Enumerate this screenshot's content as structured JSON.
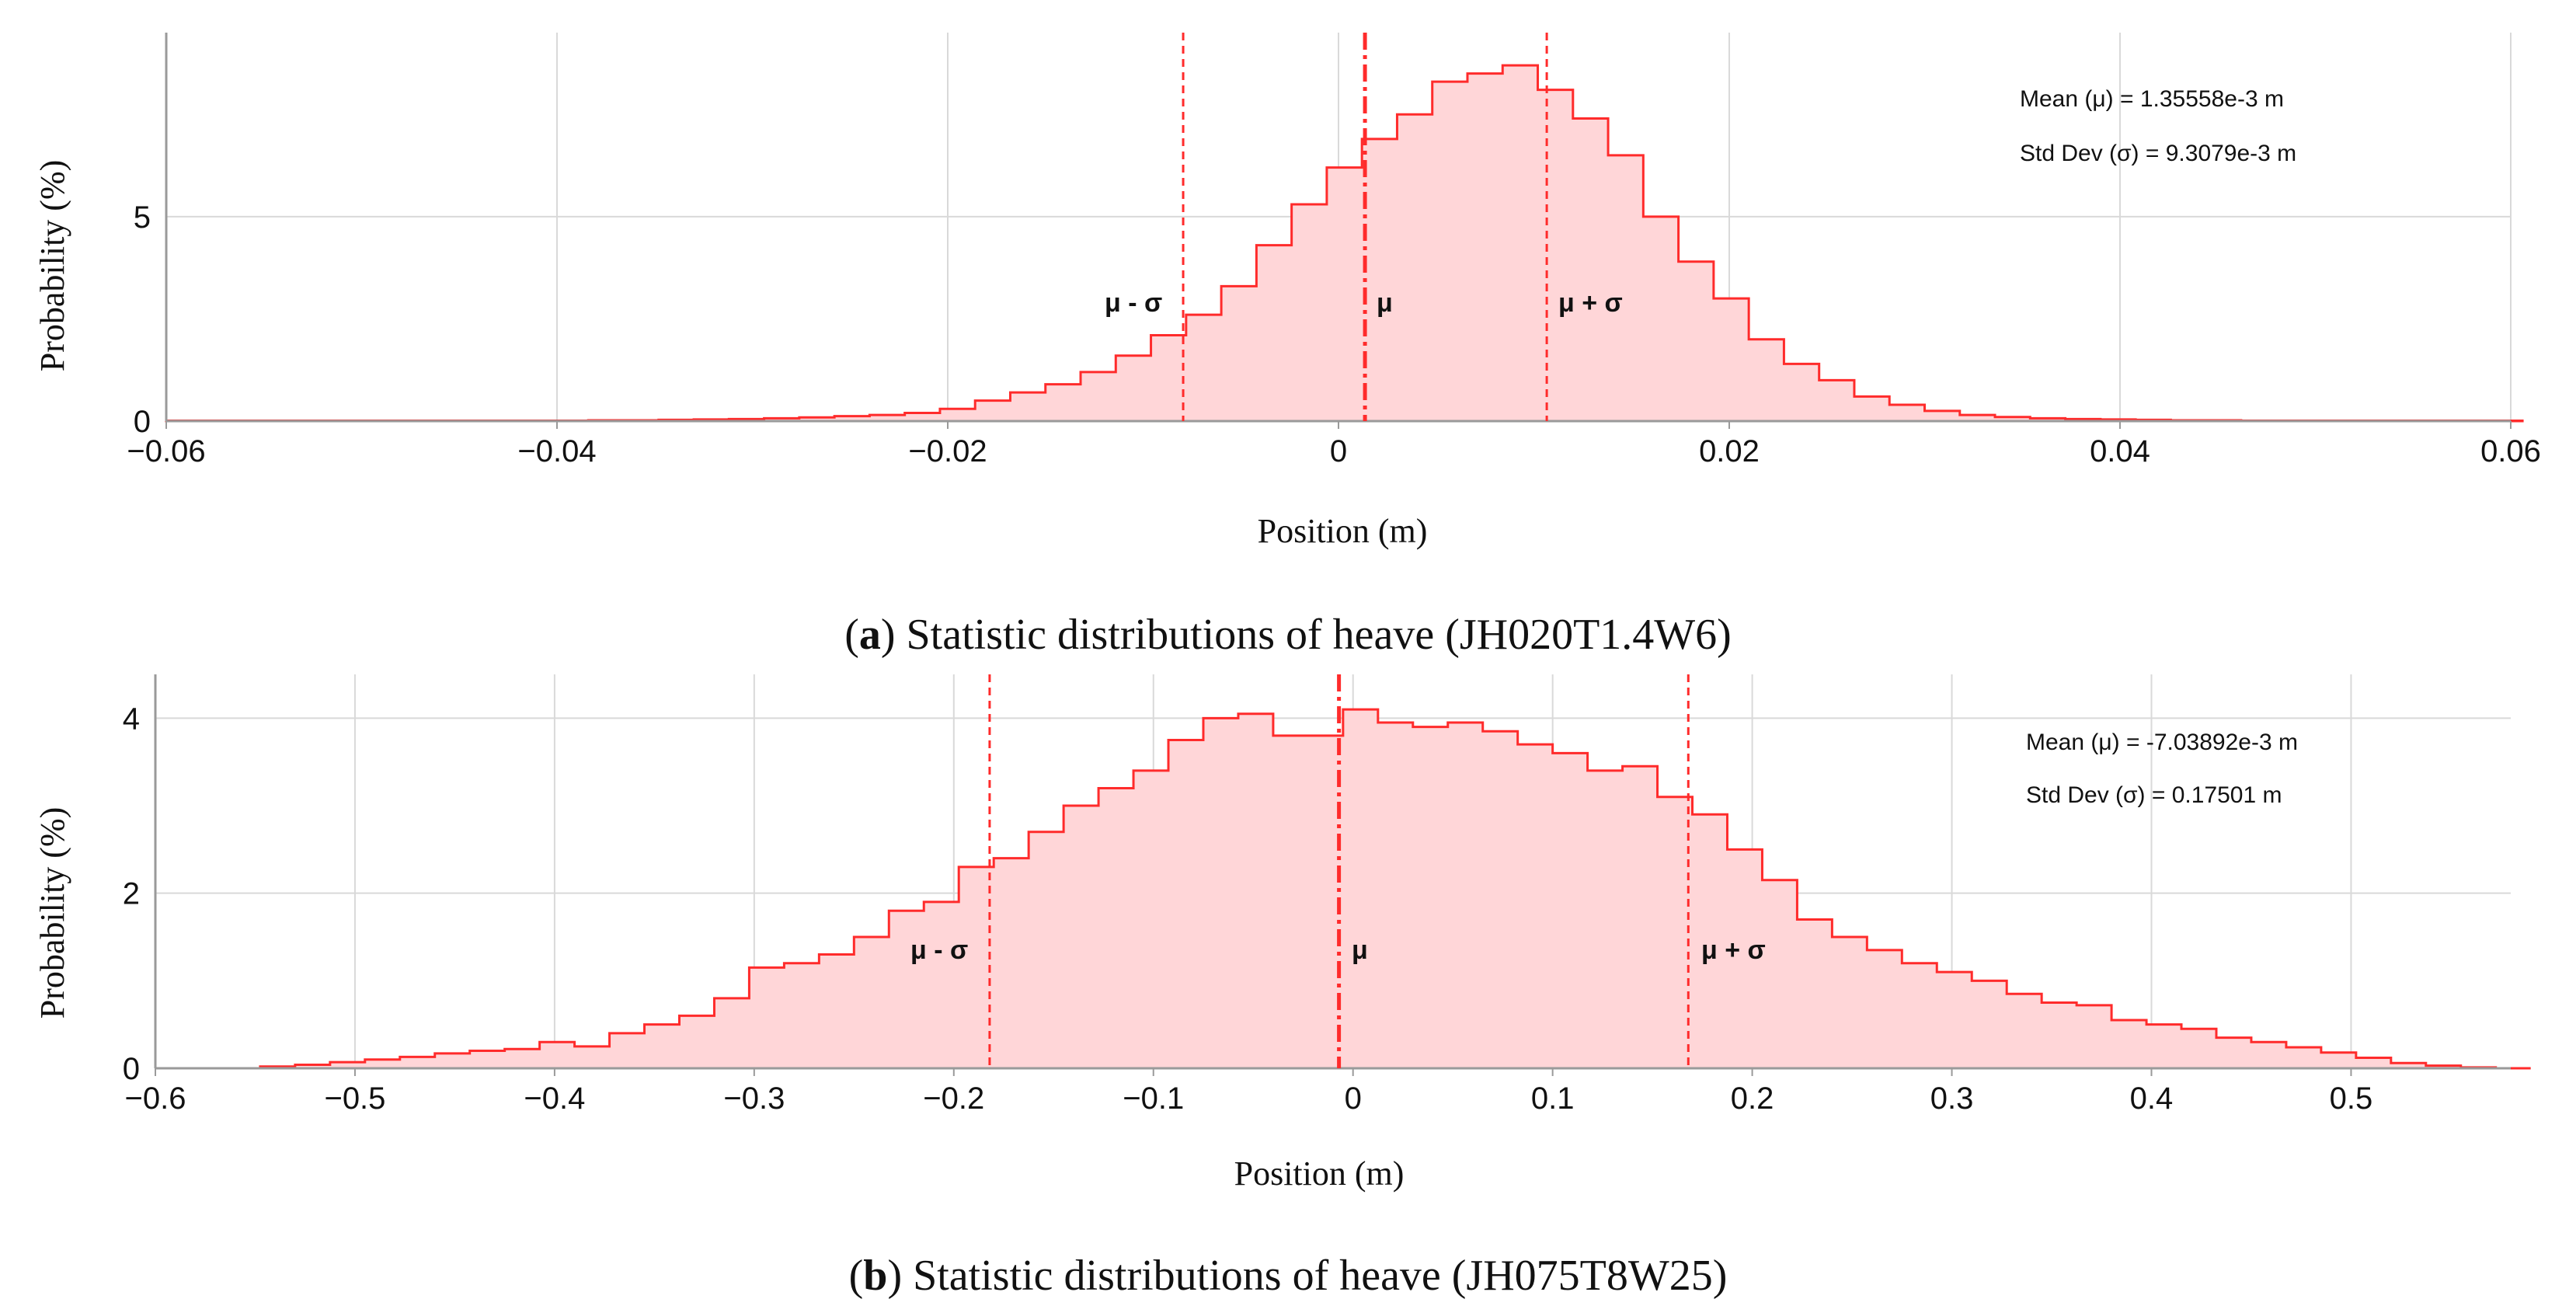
{
  "colors": {
    "fill": "#ffd6d8",
    "line": "#ff2b2b",
    "grid": "#d9d9d9",
    "axis": "#9a9a9a"
  },
  "chart_data": [
    {
      "type": "histogram",
      "caption_letter": "a",
      "caption_text": "Statistic distributions of heave (JH020T1.4W6)",
      "xlabel": "Position (m)",
      "ylabel": "Probability (%)",
      "xlim": [
        -0.06,
        0.06
      ],
      "ylim": [
        0,
        9.5
      ],
      "xticks": [
        -0.06,
        -0.04,
        -0.02,
        0,
        0.02,
        0.04,
        0.06
      ],
      "xtick_labels": [
        "−0.06",
        "−0.04",
        "−0.02",
        "0",
        "0.02",
        "0.04",
        "0.06"
      ],
      "yticks": [
        0,
        5
      ],
      "ytick_labels": [
        "0",
        "5"
      ],
      "mean_label": "Mean (μ) = 1.35558e-3 m",
      "std_label": "Std Dev (σ) = 9.3079e-3 m",
      "mean": 0.00135558,
      "mean_minus_sigma": -0.00795,
      "mean_plus_sigma": 0.01066,
      "marker_labels": {
        "minus": "μ - σ",
        "mean": "μ",
        "plus": "μ + σ"
      },
      "bin_start": -0.06,
      "bin_width": 0.0018,
      "values": [
        0.01,
        0.01,
        0.01,
        0.01,
        0.01,
        0.01,
        0.01,
        0.01,
        0.01,
        0.01,
        0.01,
        0.01,
        0.02,
        0.02,
        0.03,
        0.04,
        0.05,
        0.07,
        0.09,
        0.12,
        0.15,
        0.2,
        0.3,
        0.5,
        0.7,
        0.9,
        1.2,
        1.6,
        2.1,
        2.6,
        3.3,
        4.3,
        5.3,
        6.2,
        6.9,
        7.5,
        8.3,
        8.5,
        8.7,
        8.1,
        7.4,
        6.5,
        5.0,
        3.9,
        3.0,
        2.0,
        1.4,
        1.0,
        0.6,
        0.4,
        0.25,
        0.15,
        0.1,
        0.07,
        0.05,
        0.04,
        0.03,
        0.02,
        0.02,
        0.01,
        0.01,
        0.01,
        0.01,
        0.01,
        0.01,
        0.01,
        0.01
      ]
    },
    {
      "type": "histogram",
      "caption_letter": "b",
      "caption_text": "Statistic distributions of heave (JH075T8W25)",
      "xlabel": "Position (m)",
      "ylabel": "Probability (%)",
      "xlim": [
        -0.6,
        0.58
      ],
      "ylim": [
        0,
        4.5
      ],
      "xticks": [
        -0.6,
        -0.5,
        -0.4,
        -0.3,
        -0.2,
        -0.1,
        0,
        0.1,
        0.2,
        0.3,
        0.4,
        0.5
      ],
      "xtick_labels": [
        "−0.6",
        "−0.5",
        "−0.4",
        "−0.3",
        "−0.2",
        "−0.1",
        "0",
        "0.1",
        "0.2",
        "0.3",
        "0.4",
        "0.5"
      ],
      "yticks": [
        0,
        2,
        4
      ],
      "ytick_labels": [
        "0",
        "2",
        "4"
      ],
      "mean_label": "Mean (μ) = -7.03892e-3 m",
      "std_label": "Std Dev (σ) = 0.17501 m",
      "mean": -0.00703892,
      "mean_minus_sigma": -0.18205,
      "mean_plus_sigma": 0.16797,
      "marker_labels": {
        "minus": "μ - σ",
        "mean": "μ",
        "plus": "μ + σ"
      },
      "bin_start": -0.6,
      "bin_width": 0.0175,
      "values": [
        0,
        0,
        0,
        0.02,
        0.04,
        0.07,
        0.1,
        0.13,
        0.17,
        0.2,
        0.22,
        0.3,
        0.25,
        0.4,
        0.5,
        0.6,
        0.8,
        1.15,
        1.2,
        1.3,
        1.5,
        1.8,
        1.9,
        2.3,
        2.4,
        2.7,
        3.0,
        3.2,
        3.4,
        3.75,
        4.0,
        4.05,
        3.8,
        3.8,
        4.1,
        3.95,
        3.9,
        3.95,
        3.85,
        3.7,
        3.6,
        3.4,
        3.45,
        3.1,
        2.9,
        2.5,
        2.15,
        1.7,
        1.5,
        1.35,
        1.2,
        1.1,
        1.0,
        0.85,
        0.75,
        0.72,
        0.55,
        0.5,
        0.45,
        0.35,
        0.3,
        0.24,
        0.18,
        0.12,
        0.06,
        0.03,
        0.01,
        0
      ]
    }
  ]
}
